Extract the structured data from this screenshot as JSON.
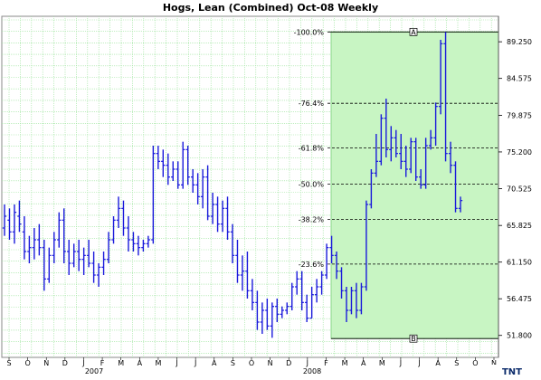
{
  "chart_data": {
    "type": "bar",
    "style": "ohlc-weekly",
    "title": "Hogs, Lean (Combined) Oct-08  Weekly",
    "ylim": [
      49.0,
      92.5
    ],
    "yticks": [
      "89.250",
      "84.575",
      "79.875",
      "75.200",
      "70.525",
      "65.825",
      "61.150",
      "56.475",
      "51.800"
    ],
    "ytick_values": [
      89.25,
      84.575,
      79.875,
      75.2,
      70.525,
      65.825,
      61.15,
      56.475,
      51.8
    ],
    "month_labels": [
      "S",
      "O",
      "N",
      "D",
      "J",
      "F",
      "M",
      "A",
      "M",
      "J",
      "J",
      "A",
      "S",
      "O",
      "N",
      "D",
      "J",
      "F",
      "M",
      "A",
      "M",
      "J",
      "J",
      "A",
      "S",
      "O",
      "N"
    ],
    "year_labels": [
      "2007",
      "2008"
    ],
    "grid": true,
    "series": [
      {
        "values": [
          [
            65.5,
            68.5,
            64.5,
            67.0
          ],
          [
            66.5,
            68.0,
            64.0,
            65.0
          ],
          [
            65.0,
            68.5,
            63.5,
            67.5
          ],
          [
            67.0,
            69.0,
            65.0,
            66.0
          ],
          [
            65.0,
            67.0,
            61.5,
            62.5
          ],
          [
            62.5,
            64.5,
            61.0,
            63.0
          ],
          [
            63.0,
            65.5,
            61.5,
            64.0
          ],
          [
            64.0,
            66.0,
            62.0,
            63.0
          ],
          [
            63.0,
            64.0,
            57.5,
            59.0
          ],
          [
            59.0,
            63.0,
            58.5,
            62.0
          ],
          [
            62.0,
            65.0,
            61.0,
            64.0
          ],
          [
            64.0,
            67.5,
            63.0,
            66.5
          ],
          [
            66.5,
            68.0,
            61.0,
            62.5
          ],
          [
            62.5,
            64.0,
            59.5,
            61.0
          ],
          [
            61.0,
            63.5,
            60.5,
            62.5
          ],
          [
            62.5,
            64.0,
            60.0,
            61.5
          ],
          [
            61.5,
            63.0,
            59.5,
            62.0
          ],
          [
            62.0,
            64.0,
            60.5,
            61.0
          ],
          [
            61.0,
            62.5,
            58.5,
            59.5
          ],
          [
            59.5,
            61.0,
            58.0,
            60.5
          ],
          [
            60.5,
            62.5,
            59.5,
            61.5
          ],
          [
            61.5,
            65.0,
            61.0,
            64.0
          ],
          [
            64.0,
            67.0,
            63.5,
            66.5
          ],
          [
            66.5,
            69.5,
            65.5,
            68.0
          ],
          [
            68.0,
            69.0,
            64.5,
            65.5
          ],
          [
            65.5,
            67.0,
            62.5,
            64.0
          ],
          [
            64.0,
            65.0,
            62.5,
            63.5
          ],
          [
            63.5,
            64.5,
            62.0,
            63.0
          ],
          [
            63.0,
            64.0,
            62.5,
            63.5
          ],
          [
            63.5,
            64.5,
            63.0,
            64.0
          ],
          [
            64.0,
            76.0,
            63.5,
            75.0
          ],
          [
            75.0,
            76.0,
            73.0,
            74.0
          ],
          [
            74.0,
            75.5,
            72.0,
            73.5
          ],
          [
            73.5,
            75.0,
            71.0,
            72.0
          ],
          [
            72.0,
            74.0,
            71.5,
            73.0
          ],
          [
            73.0,
            74.0,
            70.5,
            71.0
          ],
          [
            71.0,
            76.5,
            70.5,
            75.5
          ],
          [
            75.5,
            76.0,
            71.0,
            72.0
          ],
          [
            72.0,
            73.0,
            70.0,
            71.0
          ],
          [
            71.0,
            72.5,
            68.5,
            69.5
          ],
          [
            69.5,
            73.0,
            68.0,
            72.0
          ],
          [
            72.0,
            73.5,
            66.5,
            67.0
          ],
          [
            67.0,
            70.0,
            66.0,
            68.5
          ],
          [
            68.5,
            69.5,
            65.0,
            66.0
          ],
          [
            66.0,
            69.0,
            65.0,
            68.0
          ],
          [
            68.0,
            69.5,
            64.0,
            65.0
          ],
          [
            65.0,
            66.0,
            61.0,
            62.0
          ],
          [
            62.0,
            64.0,
            58.5,
            59.5
          ],
          [
            59.5,
            62.0,
            57.5,
            60.0
          ],
          [
            60.0,
            62.5,
            56.5,
            57.5
          ],
          [
            57.5,
            59.0,
            55.0,
            56.0
          ],
          [
            56.0,
            57.5,
            52.5,
            53.5
          ],
          [
            53.5,
            56.0,
            52.0,
            55.0
          ],
          [
            55.0,
            56.5,
            52.5,
            53.0
          ],
          [
            53.0,
            56.0,
            51.5,
            55.5
          ],
          [
            55.5,
            56.5,
            53.5,
            54.5
          ],
          [
            54.5,
            55.5,
            54.0,
            55.0
          ],
          [
            55.0,
            56.0,
            54.5,
            55.5
          ],
          [
            55.5,
            58.5,
            55.0,
            58.0
          ],
          [
            58.0,
            60.0,
            57.0,
            59.0
          ],
          [
            59.0,
            60.0,
            55.0,
            56.0
          ],
          [
            56.0,
            57.0,
            53.5,
            54.0
          ],
          [
            54.0,
            58.0,
            54.0,
            57.0
          ],
          [
            57.0,
            59.0,
            56.0,
            58.0
          ],
          [
            58.0,
            60.0,
            57.0,
            59.5
          ],
          [
            59.5,
            63.5,
            59.0,
            63.0
          ],
          [
            63.0,
            64.5,
            61.0,
            62.0
          ],
          [
            62.0,
            62.5,
            59.0,
            60.0
          ],
          [
            60.0,
            60.5,
            56.5,
            57.5
          ],
          [
            57.5,
            58.0,
            53.5,
            55.0
          ],
          [
            55.0,
            58.0,
            54.5,
            57.5
          ],
          [
            57.5,
            58.5,
            54.0,
            55.0
          ],
          [
            55.0,
            58.5,
            54.5,
            58.0
          ],
          [
            58.0,
            69.0,
            57.5,
            68.5
          ],
          [
            68.5,
            73.0,
            68.0,
            72.5
          ],
          [
            72.5,
            77.5,
            72.0,
            74.0
          ],
          [
            74.0,
            80.0,
            73.5,
            79.5
          ],
          [
            79.5,
            82.0,
            74.5,
            75.5
          ],
          [
            75.5,
            78.5,
            74.0,
            77.0
          ],
          [
            77.0,
            78.0,
            74.5,
            75.0
          ],
          [
            75.0,
            77.5,
            73.0,
            74.0
          ],
          [
            74.0,
            76.0,
            72.0,
            73.0
          ],
          [
            73.0,
            77.0,
            72.5,
            76.5
          ],
          [
            76.5,
            77.0,
            71.5,
            72.0
          ],
          [
            72.0,
            73.0,
            70.5,
            71.0
          ],
          [
            71.0,
            77.0,
            70.5,
            76.0
          ],
          [
            76.0,
            78.0,
            75.5,
            77.0
          ],
          [
            77.0,
            81.5,
            76.0,
            81.0
          ],
          [
            81.0,
            89.5,
            80.0,
            89.0
          ],
          [
            89.0,
            90.5,
            74.0,
            75.0
          ],
          [
            75.0,
            76.5,
            72.5,
            73.5
          ],
          [
            73.5,
            74.0,
            67.5,
            68.0
          ],
          [
            68.0,
            69.5,
            67.5,
            69.0
          ]
        ]
      }
    ],
    "fib_levels": [
      {
        "label": "-100.0%",
        "value": 90.5
      },
      {
        "label": "-76.4%",
        "value": 81.4
      },
      {
        "label": "-61.8%",
        "value": 75.7
      },
      {
        "label": "-50.0%",
        "value": 71.1
      },
      {
        "label": "-38.2%",
        "value": 66.6
      },
      {
        "label": "-23.6%",
        "value": 60.9
      },
      {
        "label": "",
        "value": 51.4
      }
    ],
    "fib_markers": [
      "A",
      "B"
    ],
    "colors": {
      "bars": "#1a1adb",
      "grid": "#9be39b",
      "zone": "#c8f5c3",
      "zoneBorder": "#88d888"
    }
  },
  "logo_text": "TNT"
}
